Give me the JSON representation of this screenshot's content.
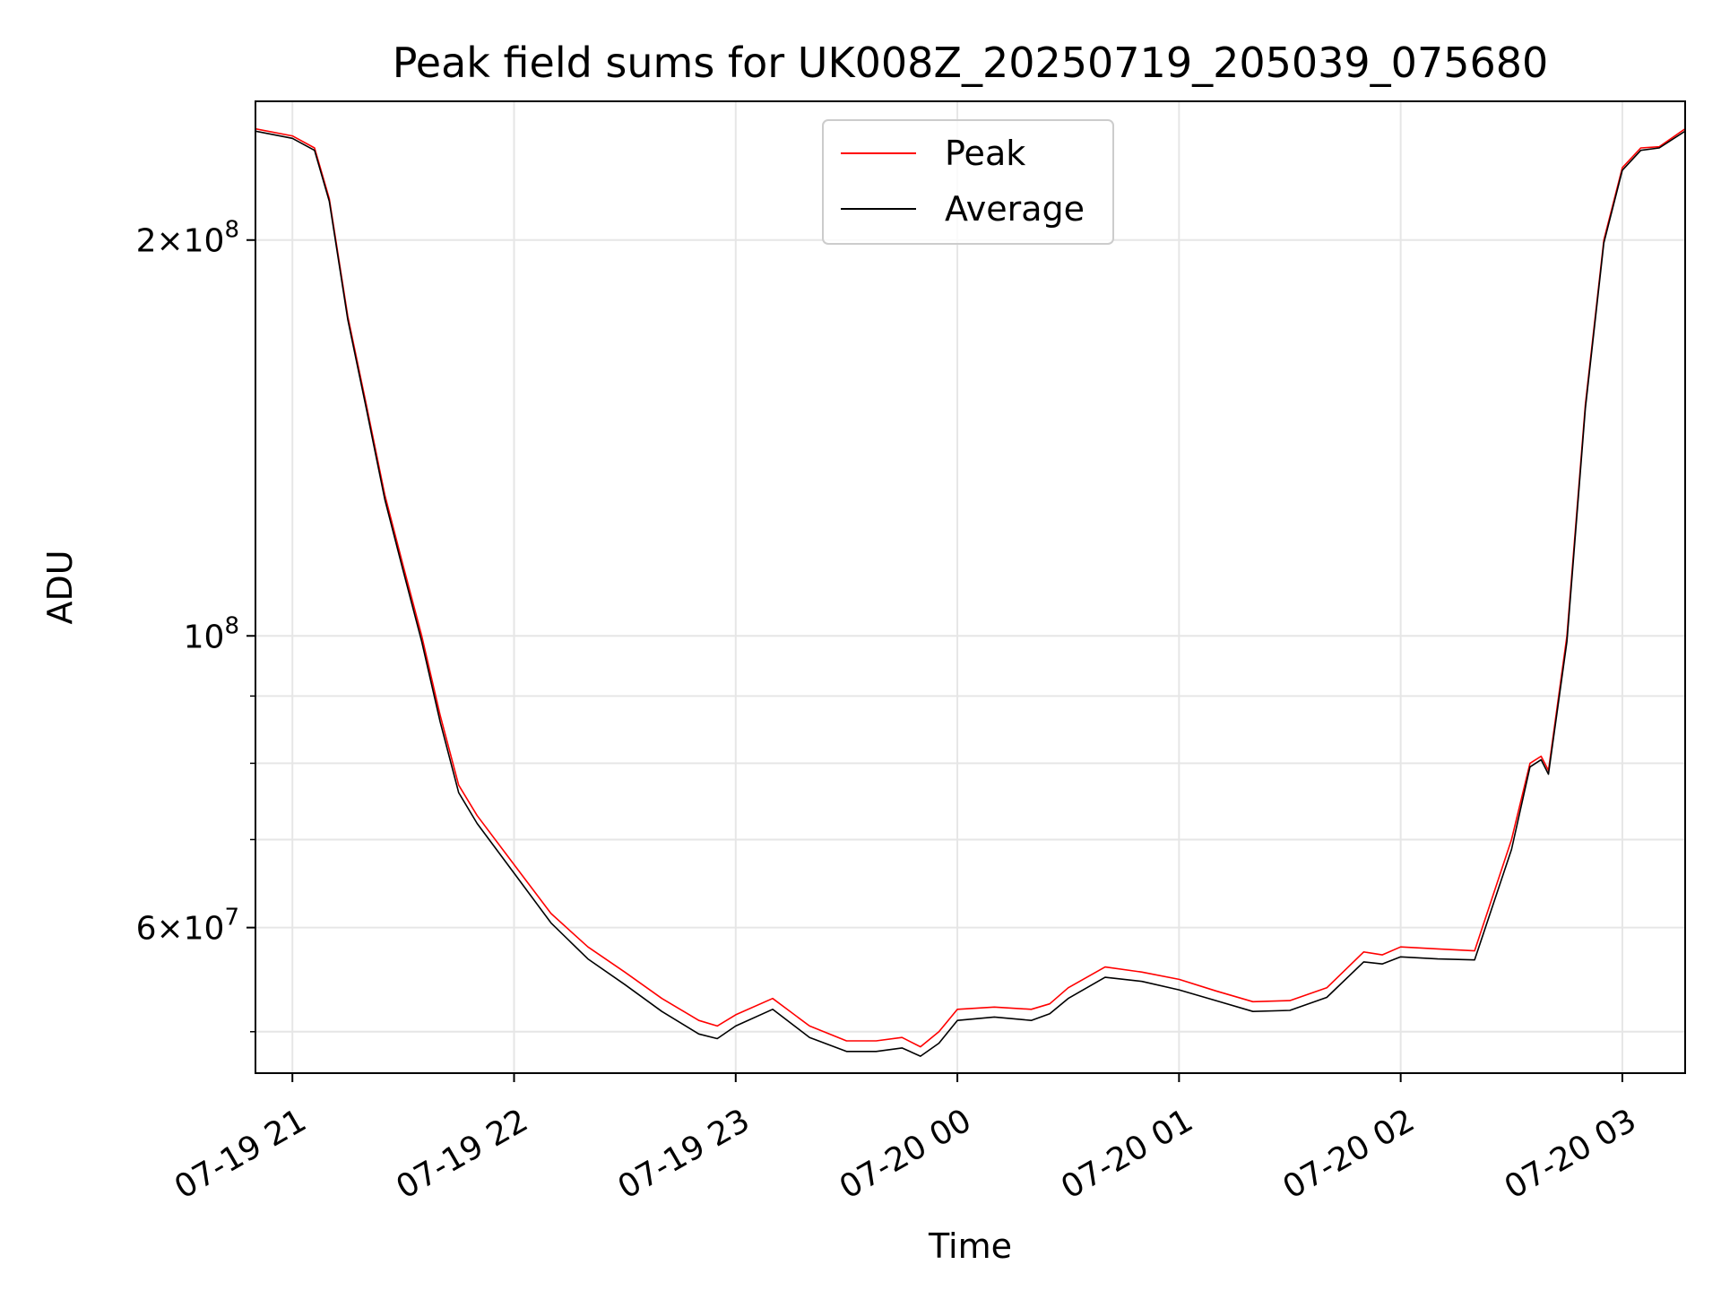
{
  "chart_data": {
    "type": "line",
    "title": "Peak field sums for UK008Z_20250719_205039_075680",
    "xlabel": "Time",
    "ylabel": "ADU",
    "yscale": "log",
    "ylim": [
      46500000,
      255000000
    ],
    "xlim": [
      "2025-07-19 20:50",
      "2025-07-20 03:17"
    ],
    "x_ticks": [
      {
        "value": "2025-07-19 21:00",
        "label": "07-19 21"
      },
      {
        "value": "2025-07-19 22:00",
        "label": "07-19 22"
      },
      {
        "value": "2025-07-19 23:00",
        "label": "07-19 23"
      },
      {
        "value": "2025-07-20 00:00",
        "label": "07-20 00"
      },
      {
        "value": "2025-07-20 01:00",
        "label": "07-20 01"
      },
      {
        "value": "2025-07-20 02:00",
        "label": "07-20 02"
      },
      {
        "value": "2025-07-20 03:00",
        "label": "07-20 03"
      }
    ],
    "y_major_ticks": [
      {
        "value": 60000000,
        "mantissa": "6",
        "exp": "7"
      },
      {
        "value": 100000000,
        "mantissa": "",
        "exp": "8"
      },
      {
        "value": 200000000,
        "mantissa": "2",
        "exp": "8"
      }
    ],
    "y_minor_ticks": [
      50000000,
      70000000,
      80000000,
      90000000
    ],
    "grid": true,
    "legend_position": "top-center",
    "series": [
      {
        "name": "Peak",
        "color": "#ff0000",
        "x": [
          "2025-07-19 20:50",
          "2025-07-19 21:00",
          "2025-07-19 21:06",
          "2025-07-19 21:10",
          "2025-07-19 21:15",
          "2025-07-19 21:20",
          "2025-07-19 21:25",
          "2025-07-19 21:30",
          "2025-07-19 21:35",
          "2025-07-19 21:40",
          "2025-07-19 21:45",
          "2025-07-19 21:50",
          "2025-07-19 22:00",
          "2025-07-19 22:10",
          "2025-07-19 22:20",
          "2025-07-19 22:30",
          "2025-07-19 22:40",
          "2025-07-19 22:50",
          "2025-07-19 22:55",
          "2025-07-19 23:00",
          "2025-07-19 23:10",
          "2025-07-19 23:20",
          "2025-07-19 23:30",
          "2025-07-19 23:38",
          "2025-07-19 23:45",
          "2025-07-19 23:50",
          "2025-07-19 23:55",
          "2025-07-20 00:00",
          "2025-07-20 00:10",
          "2025-07-20 00:20",
          "2025-07-20 00:25",
          "2025-07-20 00:30",
          "2025-07-20 00:40",
          "2025-07-20 00:50",
          "2025-07-20 01:00",
          "2025-07-20 01:10",
          "2025-07-20 01:20",
          "2025-07-20 01:30",
          "2025-07-20 01:40",
          "2025-07-20 01:50",
          "2025-07-20 01:55",
          "2025-07-20 02:00",
          "2025-07-20 02:10",
          "2025-07-20 02:20",
          "2025-07-20 02:30",
          "2025-07-20 02:35",
          "2025-07-20 02:38",
          "2025-07-20 02:40",
          "2025-07-20 02:45",
          "2025-07-20 02:50",
          "2025-07-20 02:55",
          "2025-07-20 03:00",
          "2025-07-20 03:05",
          "2025-07-20 03:10",
          "2025-07-20 03:17"
        ],
        "values": [
          243000000,
          240000000,
          235000000,
          215000000,
          175000000,
          150000000,
          128000000,
          113000000,
          100000000,
          87000000,
          77000000,
          73000000,
          67000000,
          61500000,
          58000000,
          55500000,
          53000000,
          51000000,
          50500000,
          51500000,
          53000000,
          50500000,
          49200000,
          49200000,
          49500000,
          48700000,
          50000000,
          52000000,
          52200000,
          52000000,
          52500000,
          54000000,
          56000000,
          55500000,
          54800000,
          53700000,
          52700000,
          52800000,
          54000000,
          57500000,
          57200000,
          58000000,
          57800000,
          57600000,
          70000000,
          80000000,
          81000000,
          79000000,
          100000000,
          150000000,
          200000000,
          227000000,
          235000000,
          235500000,
          243000000
        ]
      },
      {
        "name": "Average",
        "color": "#000000",
        "x": [
          "2025-07-19 20:50",
          "2025-07-19 21:00",
          "2025-07-19 21:06",
          "2025-07-19 21:10",
          "2025-07-19 21:15",
          "2025-07-19 21:20",
          "2025-07-19 21:25",
          "2025-07-19 21:30",
          "2025-07-19 21:35",
          "2025-07-19 21:40",
          "2025-07-19 21:45",
          "2025-07-19 21:50",
          "2025-07-19 22:00",
          "2025-07-19 22:10",
          "2025-07-19 22:20",
          "2025-07-19 22:30",
          "2025-07-19 22:40",
          "2025-07-19 22:50",
          "2025-07-19 22:55",
          "2025-07-19 23:00",
          "2025-07-19 23:10",
          "2025-07-19 23:20",
          "2025-07-19 23:30",
          "2025-07-19 23:38",
          "2025-07-19 23:45",
          "2025-07-19 23:50",
          "2025-07-19 23:55",
          "2025-07-20 00:00",
          "2025-07-20 00:10",
          "2025-07-20 00:20",
          "2025-07-20 00:25",
          "2025-07-20 00:30",
          "2025-07-20 00:40",
          "2025-07-20 00:50",
          "2025-07-20 01:00",
          "2025-07-20 01:10",
          "2025-07-20 01:20",
          "2025-07-20 01:30",
          "2025-07-20 01:40",
          "2025-07-20 01:50",
          "2025-07-20 01:55",
          "2025-07-20 02:00",
          "2025-07-20 02:10",
          "2025-07-20 02:20",
          "2025-07-20 02:30",
          "2025-07-20 02:35",
          "2025-07-20 02:38",
          "2025-07-20 02:40",
          "2025-07-20 02:45",
          "2025-07-20 02:50",
          "2025-07-20 02:55",
          "2025-07-20 03:00",
          "2025-07-20 03:05",
          "2025-07-20 03:10",
          "2025-07-20 03:17"
        ],
        "values": [
          242000000,
          239000000,
          234000000,
          214000000,
          174000000,
          149000000,
          127000000,
          112000000,
          99000000,
          86000000,
          76000000,
          72000000,
          66000000,
          60500000,
          56800000,
          54300000,
          51800000,
          49800000,
          49400000,
          50500000,
          52000000,
          49500000,
          48300000,
          48300000,
          48600000,
          47900000,
          49000000,
          51000000,
          51300000,
          51000000,
          51600000,
          53000000,
          55000000,
          54600000,
          53800000,
          52800000,
          51800000,
          51900000,
          53100000,
          56500000,
          56300000,
          57000000,
          56800000,
          56700000,
          68800000,
          79500000,
          80500000,
          78500000,
          99000000,
          149000000,
          199000000,
          226000000,
          234000000,
          235000000,
          242000000
        ]
      }
    ]
  }
}
